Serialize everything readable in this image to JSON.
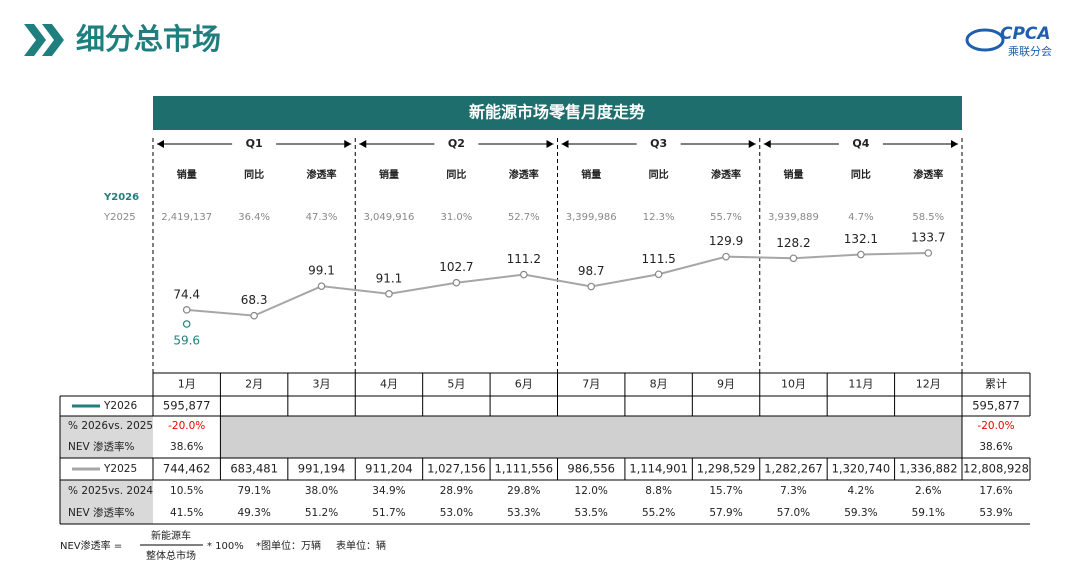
{
  "header": {
    "title": "细分总市场",
    "logo": "CPCA",
    "logo_sub": "乘联分会"
  },
  "chart_data": {
    "type": "line",
    "title": "新能源市场零售月度走势",
    "categories": [
      "1月",
      "2月",
      "3月",
      "4月",
      "5月",
      "6月",
      "7月",
      "8月",
      "9月",
      "10月",
      "11月",
      "12月"
    ],
    "series": [
      {
        "name": "Y2026",
        "color": "#1f7f7f",
        "values": [
          59.6,
          null,
          null,
          null,
          null,
          null,
          null,
          null,
          null,
          null,
          null,
          null
        ]
      },
      {
        "name": "Y2025",
        "color": "#a6a6a6",
        "values": [
          74.4,
          68.3,
          99.1,
          91.1,
          102.7,
          111.2,
          98.7,
          111.5,
          129.9,
          128.2,
          132.1,
          133.7
        ]
      }
    ]
  },
  "quarter_stats": {
    "row_labels": [
      "Y2026",
      "Y2025"
    ],
    "quarters": [
      {
        "label": "Q1",
        "metrics": [
          "销量",
          "同比",
          "渗透率"
        ],
        "y2025": [
          "2,419,137",
          "36.4%",
          "47.3%"
        ]
      },
      {
        "label": "Q2",
        "metrics": [
          "销量",
          "同比",
          "渗透率"
        ],
        "y2025": [
          "3,049,916",
          "31.0%",
          "52.7%"
        ]
      },
      {
        "label": "Q3",
        "metrics": [
          "销量",
          "同比",
          "渗透率"
        ],
        "y2025": [
          "3,399,986",
          "12.3%",
          "55.7%"
        ]
      },
      {
        "label": "Q4",
        "metrics": [
          "销量",
          "同比",
          "渗透率"
        ],
        "y2025": [
          "3,939,889",
          "4.7%",
          "58.5%"
        ]
      }
    ]
  },
  "table": {
    "columns": [
      "1月",
      "2月",
      "3月",
      "4月",
      "5月",
      "6月",
      "7月",
      "8月",
      "9月",
      "10月",
      "11月",
      "12月",
      "累计"
    ],
    "rows": [
      {
        "label": "Y2026",
        "cells": [
          "595,877",
          null,
          null,
          null,
          null,
          null,
          null,
          null,
          null,
          null,
          null,
          null,
          "595,877"
        ]
      },
      {
        "label": "% 2026vs. 2025",
        "cells": [
          "-20.0%",
          null,
          null,
          null,
          null,
          null,
          null,
          null,
          null,
          null,
          null,
          null,
          "-20.0%"
        ]
      },
      {
        "label": "NEV 渗透率%",
        "cells": [
          "38.6%",
          null,
          null,
          null,
          null,
          null,
          null,
          null,
          null,
          null,
          null,
          null,
          "38.6%"
        ]
      },
      {
        "label": "Y2025",
        "cells": [
          "744,462",
          "683,481",
          "991,194",
          "911,204",
          "1,027,156",
          "1,111,556",
          "986,556",
          "1,114,901",
          "1,298,529",
          "1,282,267",
          "1,320,740",
          "1,336,882",
          "12,808,928"
        ]
      },
      {
        "label": "% 2025vs. 2024",
        "cells": [
          "10.5%",
          "79.1%",
          "38.0%",
          "34.9%",
          "28.9%",
          "29.8%",
          "12.0%",
          "8.8%",
          "15.7%",
          "7.3%",
          "4.2%",
          "2.6%",
          "17.6%"
        ]
      },
      {
        "label": "NEV 渗透率%",
        "cells": [
          "41.5%",
          "49.3%",
          "51.2%",
          "51.7%",
          "53.0%",
          "53.3%",
          "53.5%",
          "55.2%",
          "57.9%",
          "57.0%",
          "59.3%",
          "59.1%",
          "53.9%"
        ]
      }
    ]
  },
  "footnote": {
    "lhs": "NEV渗透率 =",
    "numerator": "新能源车",
    "denominator": "整体总市场",
    "factor": "* 100%",
    "chart_unit": "*图单位：万辆",
    "table_unit": "表单位：辆"
  }
}
